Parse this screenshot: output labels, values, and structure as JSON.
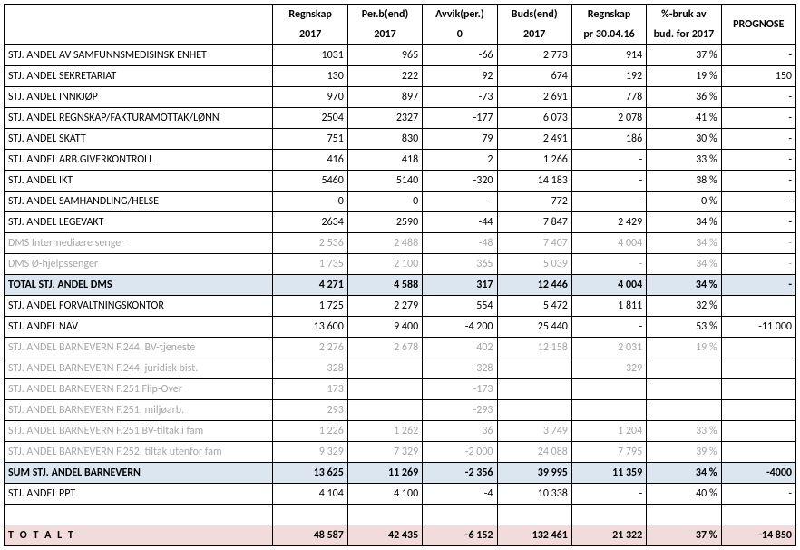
{
  "headers": {
    "row1": [
      "",
      "Regnskap",
      "Per.b(end)",
      "Avvik(per.)",
      "Buds(end)",
      "Regnskap",
      "%-bruk av"
    ],
    "row2": [
      "",
      "2017",
      "2017",
      "0",
      "2017",
      "pr 30.04.16",
      "bud. for 2017"
    ],
    "prognose": "PROGNOSE"
  },
  "rows": [
    {
      "label": "STJ. ANDEL AV SAMFUNNSMEDISINSK ENHET",
      "c": [
        "1031",
        "965",
        "-66",
        "2 773",
        "914",
        "37 %",
        "-"
      ]
    },
    {
      "label": "STJ. ANDEL SEKRETARIAT",
      "c": [
        "130",
        "222",
        "92",
        "674",
        "192",
        "19 %",
        "150"
      ]
    },
    {
      "label": "STJ. ANDEL INNKJØP",
      "c": [
        "970",
        "897",
        "-73",
        "2 691",
        "778",
        "36 %",
        "-"
      ]
    },
    {
      "label": "STJ. ANDEL REGNSKAP/FAKTURAMOTTAK/LØNN",
      "c": [
        "2504",
        "2327",
        "-177",
        "6 073",
        "2 078",
        "41 %",
        "-"
      ]
    },
    {
      "label": "STJ. ANDEL SKATT",
      "c": [
        "751",
        "830",
        "79",
        "2 491",
        "186",
        "30 %",
        "-"
      ]
    },
    {
      "label": "STJ. ANDEL ARB.GIVERKONTROLL",
      "c": [
        "416",
        "418",
        "2",
        "1 266",
        "-",
        "33 %",
        "-"
      ]
    },
    {
      "label": "STJ. ANDEL IKT",
      "c": [
        "5460",
        "5140",
        "-320",
        "14 183",
        "-",
        "38 %",
        "-"
      ]
    },
    {
      "label": "STJ. ANDEL SAMHANDLING/HELSE",
      "c": [
        "0",
        "0",
        "-",
        "772",
        "-",
        "0 %",
        "-"
      ]
    },
    {
      "label": "STJ. ANDEL LEGEVAKT",
      "c": [
        "2634",
        "2590",
        "-44",
        "7 847",
        "2 429",
        "34 %",
        "-"
      ]
    },
    {
      "label": "DMS Intermediære senger",
      "dim": true,
      "c": [
        "2 536",
        "2 488",
        "-48",
        "7 407",
        "4 004",
        "34 %",
        "-"
      ]
    },
    {
      "label": "DMS Ø-hjelpssenger",
      "dim": true,
      "c": [
        "1 735",
        "2 100",
        "365",
        "5 039",
        "-",
        "34 %",
        "-"
      ]
    },
    {
      "label": "TOTAL STJ. ANDEL DMS",
      "hl": "blue",
      "c": [
        "4 271",
        "4 588",
        "317",
        "12 446",
        "4 004",
        "34 %",
        "-"
      ]
    },
    {
      "label": "STJ. ANDEL FORVALTNINGSKONTOR",
      "c": [
        "1 725",
        "2 279",
        "554",
        "5 472",
        "1 811",
        "32 %",
        ""
      ]
    },
    {
      "label": "STJ. ANDEL NAV",
      "c": [
        "13 600",
        "9 400",
        "-4 200",
        "25 440",
        "-",
        "53 %",
        "-11 000"
      ]
    },
    {
      "label": "STJ. ANDEL BARNEVERN F.244, BV-tjeneste",
      "dim": true,
      "c": [
        "2 276",
        "2 678",
        "402",
        "12 158",
        "2 031",
        "19 %",
        ""
      ]
    },
    {
      "label": "STJ. ANDEL BARNEVERN F.244, juridisk bist.",
      "dim": true,
      "c": [
        "328",
        "",
        "-328",
        "",
        "329",
        "",
        ""
      ]
    },
    {
      "label": "STJ. ANDEL BARNEVERN F.251 Flip-Over",
      "dim": true,
      "c": [
        "173",
        "",
        "-173",
        "",
        "",
        "",
        ""
      ]
    },
    {
      "label": "STJ. ANDEL BARNEVERN F.251, miljøarb.",
      "dim": true,
      "c": [
        "293",
        "",
        "-293",
        "",
        "",
        "",
        ""
      ]
    },
    {
      "label": "STJ. ANDEL BARNEVERN F.251 BV-tiltak i fam",
      "dim": true,
      "c": [
        "1 226",
        "1 262",
        "36",
        "3 749",
        "1 204",
        "33 %",
        ""
      ]
    },
    {
      "label": "STJ. ANDEL BARNEVERN F.252, tiltak utenfor fam",
      "dim": true,
      "c": [
        "9 329",
        "7 329",
        "-2 000",
        "24 088",
        "7 795",
        "39 %",
        ""
      ]
    },
    {
      "label": "SUM STJ. ANDEL BARNEVERN",
      "hl": "blue",
      "c": [
        "13 625",
        "11 269",
        "-2 356",
        "39 995",
        "11 359",
        "34 %",
        "-4000"
      ]
    },
    {
      "label": "STJ. ANDEL PPT",
      "c": [
        "4 104",
        "4 100",
        "-4",
        "10 338",
        "-",
        "40 %",
        "-"
      ]
    },
    {
      "blank": true
    },
    {
      "label": "T O T A L T",
      "hl": "pink",
      "c": [
        "48 587",
        "42 435",
        "-6 152",
        "132 461",
        "21 322",
        "37 %",
        "-14 850"
      ]
    }
  ]
}
